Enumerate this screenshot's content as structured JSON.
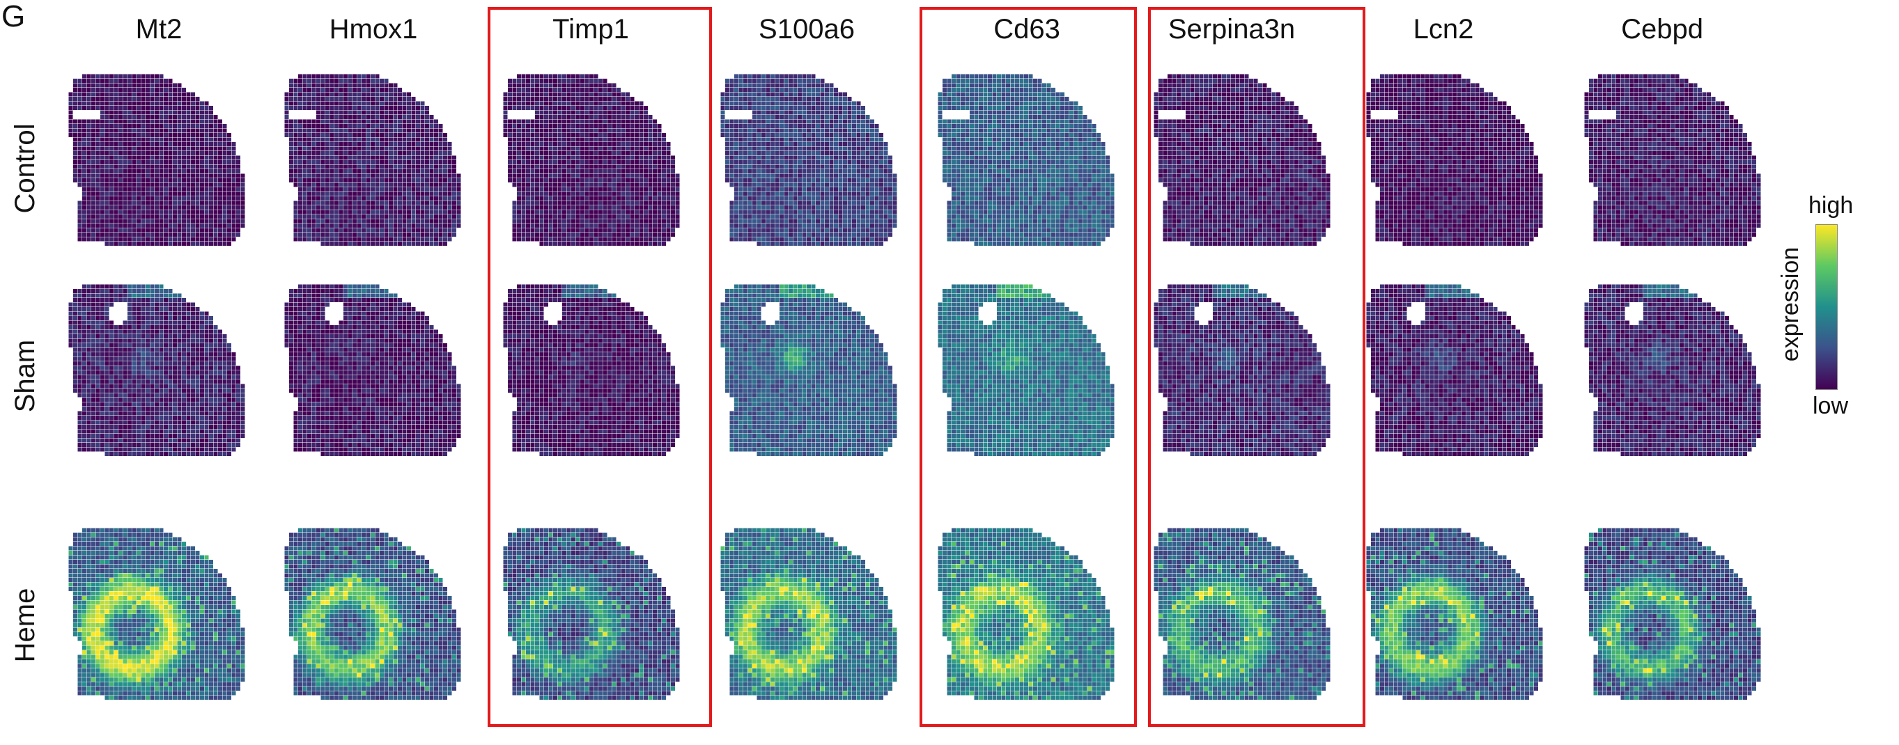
{
  "panel_label": "G",
  "genes": [
    "Mt2",
    "Hmox1",
    "Timp1",
    "S100a6",
    "Cd63",
    "Serpina3n",
    "Lcn2",
    "Cebpd"
  ],
  "conditions": [
    "Control",
    "Sham",
    "Heme"
  ],
  "highlighted_genes": [
    "Timp1",
    "Cd63",
    "Serpina3n"
  ],
  "colorbar": {
    "title": "expression",
    "high_label": "high",
    "low_label": "low",
    "colormap": [
      "#440154",
      "#3b528b",
      "#21908d",
      "#5dc963",
      "#fde725"
    ]
  },
  "colors": {
    "highlight_border": "#e31a1c",
    "background_low": "#46306e"
  }
}
